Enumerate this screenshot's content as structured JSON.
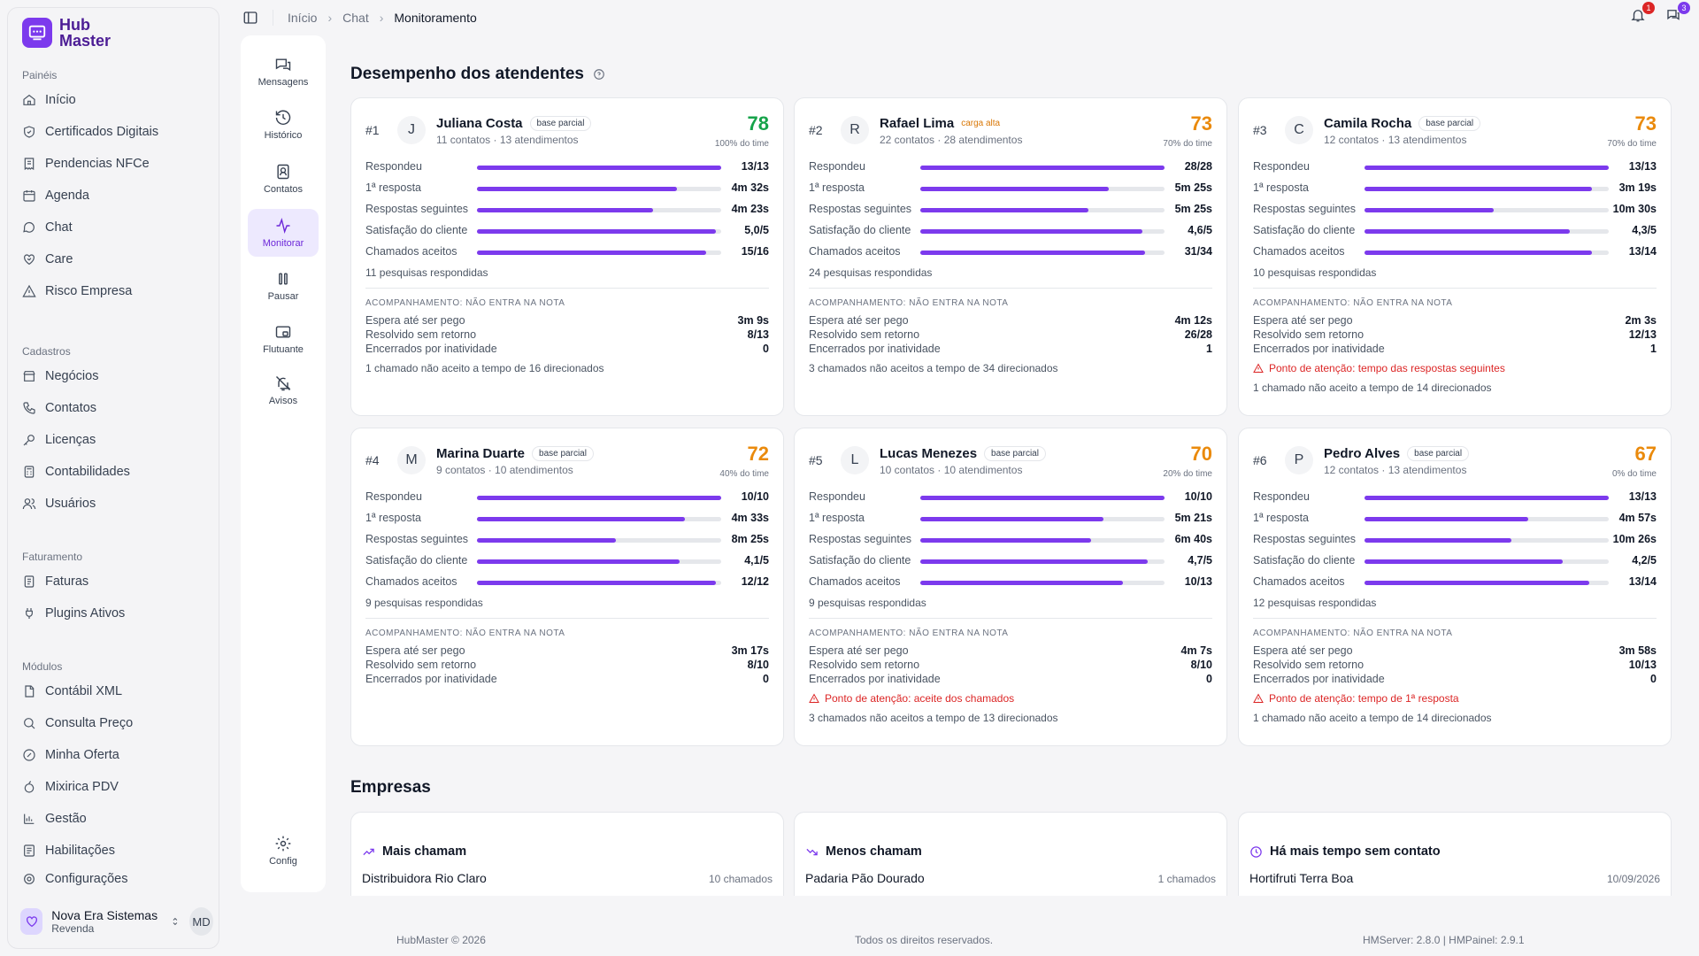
{
  "app": {
    "logo_line1": "Hub",
    "logo_line2": "Master"
  },
  "sidebar": {
    "sections": [
      {
        "title": "Painéis",
        "items": [
          "Início",
          "Certificados Digitais",
          "Pendencias NFCe",
          "Agenda",
          "Chat",
          "Care",
          "Risco Empresa"
        ]
      },
      {
        "title": "Cadastros",
        "items": [
          "Negócios",
          "Contatos",
          "Licenças",
          "Contabilidades",
          "Usuários"
        ]
      },
      {
        "title": "Faturamento",
        "items": [
          "Faturas",
          "Plugins Ativos"
        ]
      },
      {
        "title": "Módulos",
        "items": [
          "Contábil XML",
          "Consulta Preço",
          "Minha Oferta",
          "Mixirica PDV",
          "Gestão",
          "Habilitações",
          "Configurações"
        ]
      }
    ],
    "user": {
      "name": "Nova Era Sistemas",
      "role": "Revenda",
      "initials": "MD"
    }
  },
  "breadcrumb": [
    "Início",
    "Chat",
    "Monitoramento"
  ],
  "notifications": {
    "bell_count": "1",
    "chat_count": "3"
  },
  "rail": {
    "items": [
      "Mensagens",
      "Histórico",
      "Contatos",
      "Monitorar",
      "Pausar",
      "Flutuante",
      "Avisos"
    ],
    "config": "Config"
  },
  "performance": {
    "title": "Desempenho dos atendentes",
    "metric_labels": [
      "Respondeu",
      "1ª resposta",
      "Respostas seguintes",
      "Satisfação do cliente",
      "Chamados aceitos"
    ],
    "tracking_title": "ACOMPANHAMENTO: NÃO ENTRA NA NOTA",
    "tracking_labels": [
      "Espera até ser pego",
      "Resolvido sem retorno",
      "Encerrados por inatividade"
    ],
    "agents": [
      {
        "rank": "#1",
        "initial": "J",
        "name": "Juliana Costa",
        "badge": "base parcial",
        "badge_type": "parcial",
        "sub": "11 contatos · 13 atendimentos",
        "score": "78",
        "score_color": "#16a34a",
        "pct": "100% do time",
        "metrics": [
          {
            "value": "13/13",
            "fill": 1.0
          },
          {
            "value": "4m 32s",
            "fill": 0.82
          },
          {
            "value": "4m 23s",
            "fill": 0.72
          },
          {
            "value": "5,0/5",
            "fill": 0.98
          },
          {
            "value": "15/16",
            "fill": 0.94
          }
        ],
        "surveys": "11 pesquisas respondidas",
        "tracking": [
          "3m 9s",
          "8/13",
          "0"
        ],
        "alert": "",
        "note": "1 chamado não aceito a tempo de 16 direcionados"
      },
      {
        "rank": "#2",
        "initial": "R",
        "name": "Rafael Lima",
        "badge": "carga alta",
        "badge_type": "alta",
        "sub": "22 contatos · 28 atendimentos",
        "score": "73",
        "score_color": "#ea8a0c",
        "pct": "70% do time",
        "metrics": [
          {
            "value": "28/28",
            "fill": 1.0
          },
          {
            "value": "5m 25s",
            "fill": 0.77
          },
          {
            "value": "5m 25s",
            "fill": 0.69
          },
          {
            "value": "4,6/5",
            "fill": 0.91
          },
          {
            "value": "31/34",
            "fill": 0.92
          }
        ],
        "surveys": "24 pesquisas respondidas",
        "tracking": [
          "4m 12s",
          "26/28",
          "1"
        ],
        "alert": "",
        "note": "3 chamados não aceitos a tempo de 34 direcionados"
      },
      {
        "rank": "#3",
        "initial": "C",
        "name": "Camila Rocha",
        "badge": "base parcial",
        "badge_type": "parcial",
        "sub": "12 contatos · 13 atendimentos",
        "score": "73",
        "score_color": "#ea8a0c",
        "pct": "70% do time",
        "metrics": [
          {
            "value": "13/13",
            "fill": 1.0
          },
          {
            "value": "3m 19s",
            "fill": 0.93
          },
          {
            "value": "10m 30s",
            "fill": 0.53
          },
          {
            "value": "4,3/5",
            "fill": 0.84
          },
          {
            "value": "13/14",
            "fill": 0.93
          }
        ],
        "surveys": "10 pesquisas respondidas",
        "tracking": [
          "2m 3s",
          "12/13",
          "1"
        ],
        "alert": "Ponto de atenção: tempo das respostas seguintes",
        "note": "1 chamado não aceito a tempo de 14 direcionados"
      },
      {
        "rank": "#4",
        "initial": "M",
        "name": "Marina Duarte",
        "badge": "base parcial",
        "badge_type": "parcial",
        "sub": "9 contatos · 10 atendimentos",
        "score": "72",
        "score_color": "#ea8a0c",
        "pct": "40% do time",
        "metrics": [
          {
            "value": "10/10",
            "fill": 1.0
          },
          {
            "value": "4m 33s",
            "fill": 0.85
          },
          {
            "value": "8m 25s",
            "fill": 0.57
          },
          {
            "value": "4,1/5",
            "fill": 0.83
          },
          {
            "value": "12/12",
            "fill": 0.98
          }
        ],
        "surveys": "9 pesquisas respondidas",
        "tracking": [
          "3m 17s",
          "8/10",
          "0"
        ],
        "alert": "",
        "note": ""
      },
      {
        "rank": "#5",
        "initial": "L",
        "name": "Lucas Menezes",
        "badge": "base parcial",
        "badge_type": "parcial",
        "sub": "10 contatos · 10 atendimentos",
        "score": "70",
        "score_color": "#ea8a0c",
        "pct": "20% do time",
        "metrics": [
          {
            "value": "10/10",
            "fill": 1.0
          },
          {
            "value": "5m 21s",
            "fill": 0.75
          },
          {
            "value": "6m 40s",
            "fill": 0.7
          },
          {
            "value": "4,7/5",
            "fill": 0.93
          },
          {
            "value": "10/13",
            "fill": 0.83
          }
        ],
        "surveys": "9 pesquisas respondidas",
        "tracking": [
          "4m 7s",
          "8/10",
          "0"
        ],
        "alert": "Ponto de atenção: aceite dos chamados",
        "note": "3 chamados não aceitos a tempo de 13 direcionados"
      },
      {
        "rank": "#6",
        "initial": "P",
        "name": "Pedro Alves",
        "badge": "base parcial",
        "badge_type": "parcial",
        "sub": "12 contatos · 13 atendimentos",
        "score": "67",
        "score_color": "#ea8a0c",
        "pct": "0% do time",
        "metrics": [
          {
            "value": "13/13",
            "fill": 1.0
          },
          {
            "value": "4m 57s",
            "fill": 0.67
          },
          {
            "value": "10m 26s",
            "fill": 0.6
          },
          {
            "value": "4,2/5",
            "fill": 0.81
          },
          {
            "value": "13/14",
            "fill": 0.92
          }
        ],
        "surveys": "12 pesquisas respondidas",
        "tracking": [
          "3m 58s",
          "10/13",
          "0"
        ],
        "alert": "Ponto de atenção: tempo de 1ª resposta",
        "note": "1 chamado não aceito a tempo de 14 direcionados"
      }
    ]
  },
  "companies": {
    "title": "Empresas",
    "cards": [
      {
        "title": "Mais chamam",
        "icon": "trend-up-icon",
        "name": "Distribuidora Rio Claro",
        "value": "10 chamados"
      },
      {
        "title": "Menos chamam",
        "icon": "trend-down-icon",
        "name": "Padaria Pão Dourado",
        "value": "1 chamados"
      },
      {
        "title": "Há mais tempo sem contato",
        "icon": "clock-icon",
        "name": "Hortifruti Terra Boa",
        "value": "10/09/2026"
      }
    ]
  },
  "footer": {
    "left": "HubMaster © 2026",
    "center": "Todos os direitos reservados.",
    "right": "HMServer: 2.8.0 | HMPainel: 2.9.1"
  },
  "colors": {
    "accent": "#7c3aed",
    "score_green": "#16a34a",
    "score_orange": "#ea8a0c",
    "alert_red": "#dc2626"
  }
}
